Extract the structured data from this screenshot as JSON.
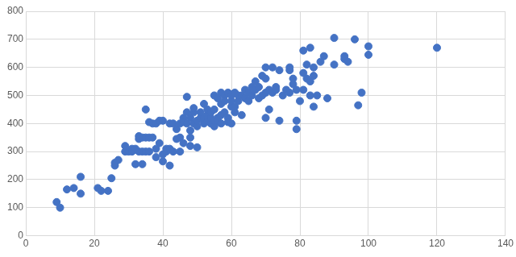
{
  "chart_data": {
    "type": "scatter",
    "color": "#4472c4",
    "grid": true,
    "xlim": [
      0,
      140
    ],
    "xticks": [
      0,
      20,
      40,
      60,
      80,
      100,
      120,
      140
    ],
    "ylim": [
      0,
      800
    ],
    "yticks": [
      0,
      100,
      200,
      300,
      400,
      500,
      600,
      700,
      800
    ],
    "x": [
      9,
      10,
      12,
      14,
      16,
      16,
      21,
      22,
      24,
      25,
      26,
      26,
      27,
      29,
      29,
      30,
      31,
      31,
      32,
      32,
      33,
      33,
      33,
      34,
      34,
      34,
      35,
      35,
      35,
      36,
      36,
      36,
      37,
      37,
      38,
      38,
      38,
      39,
      39,
      40,
      40,
      40,
      41,
      41,
      42,
      42,
      42,
      43,
      43,
      44,
      44,
      45,
      45,
      45,
      46,
      46,
      46,
      47,
      47,
      47,
      48,
      48,
      48,
      48,
      49,
      49,
      49,
      50,
      50,
      50,
      51,
      51,
      52,
      52,
      52,
      53,
      53,
      53,
      54,
      54,
      54,
      55,
      55,
      55,
      55,
      56,
      56,
      56,
      57,
      57,
      57,
      57,
      58,
      58,
      58,
      59,
      59,
      59,
      60,
      60,
      60,
      60,
      61,
      61,
      61,
      62,
      62,
      63,
      63,
      64,
      64,
      65,
      65,
      66,
      66,
      67,
      67,
      68,
      68,
      69,
      69,
      70,
      70,
      70,
      70,
      71,
      71,
      72,
      72,
      73,
      73,
      74,
      74,
      75,
      76,
      77,
      77,
      77,
      78,
      78,
      79,
      79,
      79,
      80,
      81,
      81,
      81,
      82,
      82,
      83,
      83,
      83,
      84,
      84,
      84,
      85,
      86,
      87,
      88,
      90,
      90,
      93,
      93,
      94,
      96,
      97,
      98,
      100,
      100,
      120
    ],
    "values": [
      120,
      100,
      165,
      170,
      210,
      150,
      170,
      160,
      160,
      205,
      250,
      260,
      270,
      300,
      320,
      300,
      310,
      300,
      255,
      310,
      300,
      345,
      355,
      255,
      300,
      350,
      350,
      300,
      450,
      300,
      350,
      405,
      400,
      350,
      310,
      280,
      400,
      410,
      330,
      265,
      290,
      410,
      300,
      310,
      250,
      310,
      400,
      400,
      300,
      345,
      380,
      300,
      350,
      400,
      330,
      420,
      405,
      400,
      495,
      440,
      350,
      375,
      420,
      320,
      400,
      440,
      455,
      390,
      410,
      315,
      420,
      440,
      400,
      420,
      470,
      410,
      430,
      450,
      400,
      420,
      440,
      390,
      410,
      500,
      450,
      420,
      490,
      410,
      510,
      470,
      430,
      400,
      500,
      480,
      440,
      510,
      420,
      405,
      400,
      460,
      480,
      500,
      440,
      510,
      460,
      480,
      500,
      430,
      500,
      490,
      520,
      510,
      480,
      530,
      500,
      520,
      550,
      490,
      530,
      500,
      570,
      600,
      420,
      510,
      560,
      450,
      520,
      600,
      510,
      530,
      520,
      410,
      590,
      500,
      520,
      600,
      590,
      510,
      560,
      540,
      380,
      410,
      520,
      480,
      580,
      520,
      660,
      610,
      560,
      670,
      500,
      550,
      460,
      600,
      570,
      500,
      620,
      640,
      490,
      610,
      705,
      640,
      630,
      620,
      700,
      465,
      510,
      675,
      645,
      670
    ]
  }
}
